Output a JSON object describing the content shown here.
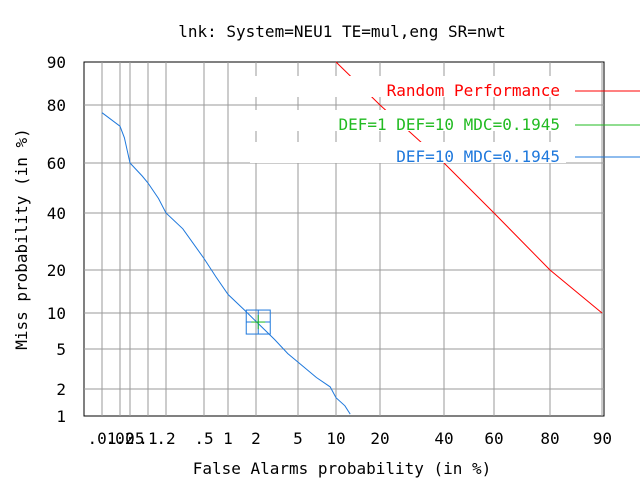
{
  "chart_data": {
    "type": "line",
    "title": "lnk: System=NEU1 TE=mul,eng SR=nwt",
    "xlabel": "False Alarms probability (in %)",
    "ylabel": "Miss probability (in %)",
    "x_scale": "normal-deviate (DET)",
    "y_scale": "normal-deviate (DET)",
    "xlim": [
      0.01,
      90
    ],
    "ylim": [
      1,
      90
    ],
    "grid": true,
    "legend_position": "top-right",
    "x_ticks": [
      {
        "value": 0.01,
        "label": ".01"
      },
      {
        "value": 0.02,
        "label": ".02"
      },
      {
        "value": 0.05,
        "label": ".05"
      },
      {
        "value": 0.1,
        "label": ".1"
      },
      {
        "value": 0.2,
        "label": ".2"
      },
      {
        "value": 0.5,
        "label": ".5"
      },
      {
        "value": 1,
        "label": "1"
      },
      {
        "value": 2,
        "label": "2"
      },
      {
        "value": 5,
        "label": "5"
      },
      {
        "value": 10,
        "label": "10"
      },
      {
        "value": 20,
        "label": "20"
      },
      {
        "value": 40,
        "label": "40"
      },
      {
        "value": 60,
        "label": "60"
      },
      {
        "value": 80,
        "label": "80"
      },
      {
        "value": 90,
        "label": "90"
      }
    ],
    "y_ticks": [
      {
        "value": 1,
        "label": "1"
      },
      {
        "value": 2,
        "label": "2"
      },
      {
        "value": 5,
        "label": "5"
      },
      {
        "value": 10,
        "label": "10"
      },
      {
        "value": 20,
        "label": "20"
      },
      {
        "value": 40,
        "label": "40"
      },
      {
        "value": 60,
        "label": "60"
      },
      {
        "value": 80,
        "label": "80"
      },
      {
        "value": 90,
        "label": "90"
      }
    ],
    "series": [
      {
        "name": "Random Performance",
        "color": "#ff0000",
        "x": [
          10,
          20,
          40,
          60,
          80,
          90
        ],
        "y": [
          90,
          80,
          60,
          40,
          20,
          10
        ]
      },
      {
        "name": "DEF=10 MDC=0.1945",
        "color": "#1e78dc",
        "x": [
          0.01,
          0.02,
          0.03,
          0.05,
          0.08,
          0.1,
          0.15,
          0.2,
          0.3,
          0.5,
          0.7,
          1,
          1.5,
          2,
          3,
          4,
          5,
          7,
          9,
          10,
          11.5,
          12.5
        ],
        "y": [
          77,
          72,
          68,
          60,
          54,
          51,
          45,
          40,
          33,
          23,
          18,
          13.5,
          10.5,
          8.5,
          6,
          4.5,
          3.7,
          2.6,
          2.1,
          1.6,
          1.3,
          1.05
        ]
      }
    ],
    "markers": [
      {
        "name": "DEF=10 MDC=0.1945",
        "color": "#1e78dc",
        "shape": "square",
        "x": 2.1,
        "y": 8.4
      },
      {
        "name": "DEF=1 DEF=10 MDC=0.1945",
        "color": "#22bb22",
        "shape": "cross",
        "x": 2.1,
        "y": 8.4
      }
    ],
    "legend": [
      {
        "label": "Random Performance",
        "color": "#ff0000"
      },
      {
        "label": "DEF=1 DEF=10 MDC=0.1945",
        "color": "#22bb22"
      },
      {
        "label": "DEF=10 MDC=0.1945",
        "color": "#1e78dc"
      }
    ]
  }
}
